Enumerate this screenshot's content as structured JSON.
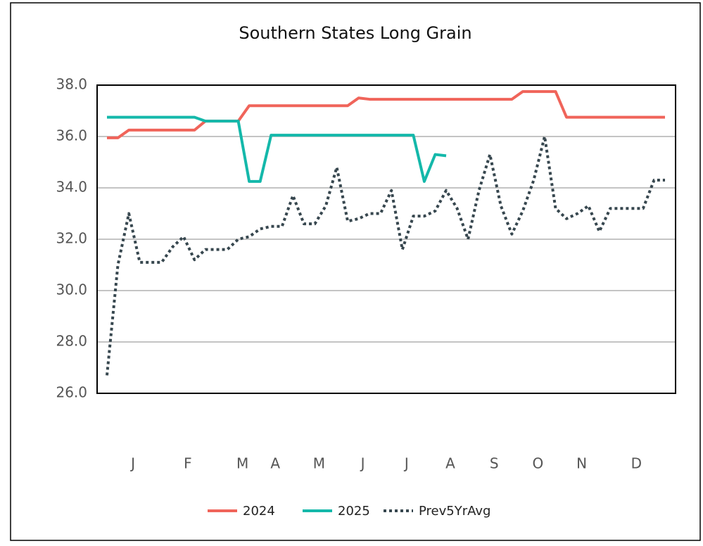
{
  "chart_data": {
    "type": "line",
    "title": "Southern States Long Grain",
    "categories": [
      null,
      null,
      "J",
      null,
      null,
      null,
      null,
      "F",
      null,
      null,
      null,
      null,
      "M",
      null,
      null,
      "A",
      null,
      null,
      null,
      "M",
      null,
      null,
      null,
      "J",
      null,
      null,
      null,
      "J",
      null,
      null,
      null,
      "A",
      null,
      null,
      null,
      "S",
      null,
      null,
      null,
      "O",
      null,
      null,
      null,
      "N",
      null,
      null,
      null,
      null,
      "D",
      null,
      null,
      null
    ],
    "series": [
      {
        "name": "2024",
        "color": "#f0645a",
        "dash": false,
        "values": [
          35.95,
          35.95,
          36.25,
          36.25,
          36.25,
          36.25,
          36.25,
          36.25,
          36.25,
          36.6,
          36.6,
          36.6,
          36.6,
          37.2,
          37.2,
          37.2,
          37.2,
          37.2,
          37.2,
          37.2,
          37.2,
          37.2,
          37.2,
          37.5,
          37.45,
          37.45,
          37.45,
          37.45,
          37.45,
          37.45,
          37.45,
          37.45,
          37.45,
          37.45,
          37.45,
          37.45,
          37.45,
          37.45,
          37.75,
          37.75,
          37.75,
          37.75,
          36.75,
          36.75,
          36.75,
          36.75,
          36.75,
          36.75,
          36.75,
          36.75,
          36.75,
          36.75
        ]
      },
      {
        "name": "2025",
        "color": "#14b8aa",
        "dash": false,
        "values": [
          36.75,
          36.75,
          36.75,
          36.75,
          36.75,
          36.75,
          36.75,
          36.75,
          36.75,
          36.6,
          36.6,
          36.6,
          36.6,
          34.25,
          34.25,
          36.05,
          36.05,
          36.05,
          36.05,
          36.05,
          36.05,
          36.05,
          36.05,
          36.05,
          36.05,
          36.05,
          36.05,
          36.05,
          36.05,
          34.25,
          35.3,
          35.25,
          null,
          null,
          null,
          null,
          null,
          null,
          null,
          null,
          null,
          null,
          null,
          null,
          null,
          null,
          null,
          null,
          null,
          null,
          null,
          null
        ]
      },
      {
        "name": "Prev5YrAvg",
        "color": "#37474f",
        "dash": true,
        "values": [
          26.7,
          31,
          33,
          31.1,
          31.1,
          31.1,
          31.7,
          32.1,
          31.2,
          31.6,
          31.6,
          31.6,
          32,
          32.1,
          32.4,
          32.5,
          32.5,
          33.7,
          32.6,
          32.6,
          33.3,
          34.8,
          32.7,
          32.8,
          33,
          33,
          33.9,
          31.6,
          32.9,
          32.9,
          33.1,
          33.9,
          33.2,
          32,
          33.9,
          35.3,
          33.3,
          32.2,
          33.1,
          34.3,
          36,
          33.2,
          32.8,
          33,
          33.3,
          32.3,
          33.2,
          33.2,
          33.2,
          33.2,
          34.3,
          34.3
        ]
      }
    ],
    "ylim": [
      26,
      38
    ],
    "yticks": [
      {
        "value": 26,
        "label": "26.0"
      },
      {
        "value": 28,
        "label": "28.0"
      },
      {
        "value": 30,
        "label": "30.0"
      },
      {
        "value": 32,
        "label": "32.0"
      },
      {
        "value": 34,
        "label": "34.0"
      },
      {
        "value": 36,
        "label": "36.0"
      },
      {
        "value": 38,
        "label": "38.0"
      }
    ],
    "grid": true,
    "legend": "bottom"
  }
}
